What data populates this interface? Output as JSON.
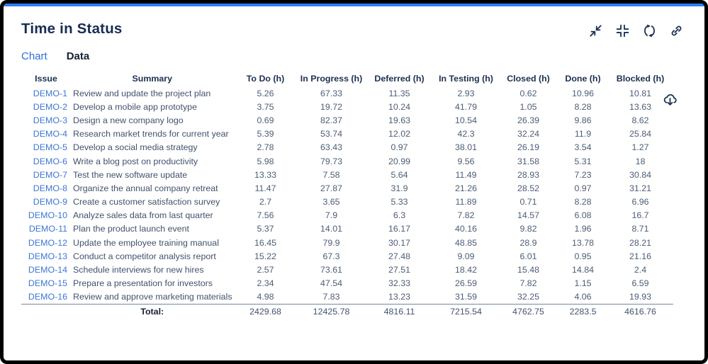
{
  "header": {
    "title": "Time in Status"
  },
  "toolbar": {
    "icons": [
      {
        "name": "collapse-arrows-icon"
      },
      {
        "name": "contract-corners-icon"
      },
      {
        "name": "refresh-icon"
      },
      {
        "name": "link-icon"
      }
    ]
  },
  "tabs": [
    {
      "label": "Chart",
      "active": false
    },
    {
      "label": "Data",
      "active": true
    }
  ],
  "export": {
    "icon": "cloud-download-icon"
  },
  "colors": {
    "accent": "#2e7cf6",
    "title": "#192c52",
    "issue_link": "#3d76d3",
    "tab_inactive": "#2e6ede",
    "tab_active": "#16202e",
    "icon": "#1c3353"
  },
  "table": {
    "columns": [
      "Issue",
      "Summary",
      "To Do (h)",
      "In Progress (h)",
      "Deferred (h)",
      "In Testing (h)",
      "Closed (h)",
      "Done (h)",
      "Blocked (h)"
    ],
    "rows": [
      {
        "issue": "DEMO-1",
        "summary": "Review and update the project plan",
        "values": [
          "5.26",
          "67.33",
          "11.35",
          "2.93",
          "0.62",
          "10.96",
          "10.81"
        ]
      },
      {
        "issue": "DEMO-2",
        "summary": "Develop a mobile app prototype",
        "values": [
          "3.75",
          "19.72",
          "10.24",
          "41.79",
          "1.05",
          "8.28",
          "13.63"
        ]
      },
      {
        "issue": "DEMO-3",
        "summary": "Design a new company logo",
        "values": [
          "0.69",
          "82.37",
          "19.63",
          "10.54",
          "26.39",
          "9.86",
          "8.62"
        ]
      },
      {
        "issue": "DEMO-4",
        "summary": "Research market trends for current year",
        "values": [
          "5.39",
          "53.74",
          "12.02",
          "42.3",
          "32.24",
          "11.9",
          "25.84"
        ]
      },
      {
        "issue": "DEMO-5",
        "summary": "Develop a social media strategy",
        "values": [
          "2.78",
          "63.43",
          "0.97",
          "38.01",
          "26.19",
          "3.54",
          "1.27"
        ]
      },
      {
        "issue": "DEMO-6",
        "summary": "Write a blog post on productivity",
        "values": [
          "5.98",
          "79.73",
          "20.99",
          "9.56",
          "31.58",
          "5.31",
          "18"
        ]
      },
      {
        "issue": "DEMO-7",
        "summary": "Test the new software update",
        "values": [
          "13.33",
          "7.58",
          "5.64",
          "11.49",
          "28.93",
          "7.23",
          "30.84"
        ]
      },
      {
        "issue": "DEMO-8",
        "summary": "Organize the annual company retreat",
        "values": [
          "11.47",
          "27.87",
          "31.9",
          "21.26",
          "28.52",
          "0.97",
          "31.21"
        ]
      },
      {
        "issue": "DEMO-9",
        "summary": "Create a customer satisfaction survey",
        "values": [
          "2.7",
          "3.65",
          "5.33",
          "11.89",
          "0.71",
          "8.28",
          "6.96"
        ]
      },
      {
        "issue": "DEMO-10",
        "summary": "Analyze sales data from last quarter",
        "values": [
          "7.56",
          "7.9",
          "6.3",
          "7.82",
          "14.57",
          "6.08",
          "16.7"
        ]
      },
      {
        "issue": "DEMO-11",
        "summary": "Plan the product launch event",
        "values": [
          "5.37",
          "14.01",
          "16.17",
          "40.16",
          "9.82",
          "1.96",
          "8.71"
        ]
      },
      {
        "issue": "DEMO-12",
        "summary": "Update the employee training manual",
        "values": [
          "16.45",
          "79.9",
          "30.17",
          "48.85",
          "28.9",
          "13.78",
          "28.21"
        ]
      },
      {
        "issue": "DEMO-13",
        "summary": "Conduct a competitor analysis report",
        "values": [
          "15.22",
          "67.3",
          "27.48",
          "9.09",
          "6.01",
          "0.95",
          "21.16"
        ]
      },
      {
        "issue": "DEMO-14",
        "summary": "Schedule interviews for new hires",
        "values": [
          "2.57",
          "73.61",
          "27.51",
          "18.42",
          "15.48",
          "14.84",
          "2.4"
        ]
      },
      {
        "issue": "DEMO-15",
        "summary": "Prepare a presentation for investors",
        "values": [
          "2.34",
          "47.54",
          "32.33",
          "26.59",
          "7.82",
          "1.15",
          "6.59"
        ]
      },
      {
        "issue": "DEMO-16",
        "summary": "Review and approve marketing materials",
        "values": [
          "4.98",
          "7.83",
          "13.23",
          "31.59",
          "32.25",
          "4.06",
          "19.93"
        ]
      }
    ],
    "total_label": "Total:",
    "totals": [
      "2429.68",
      "12425.78",
      "4816.11",
      "7215.54",
      "4762.75",
      "2283.5",
      "4616.76"
    ]
  }
}
